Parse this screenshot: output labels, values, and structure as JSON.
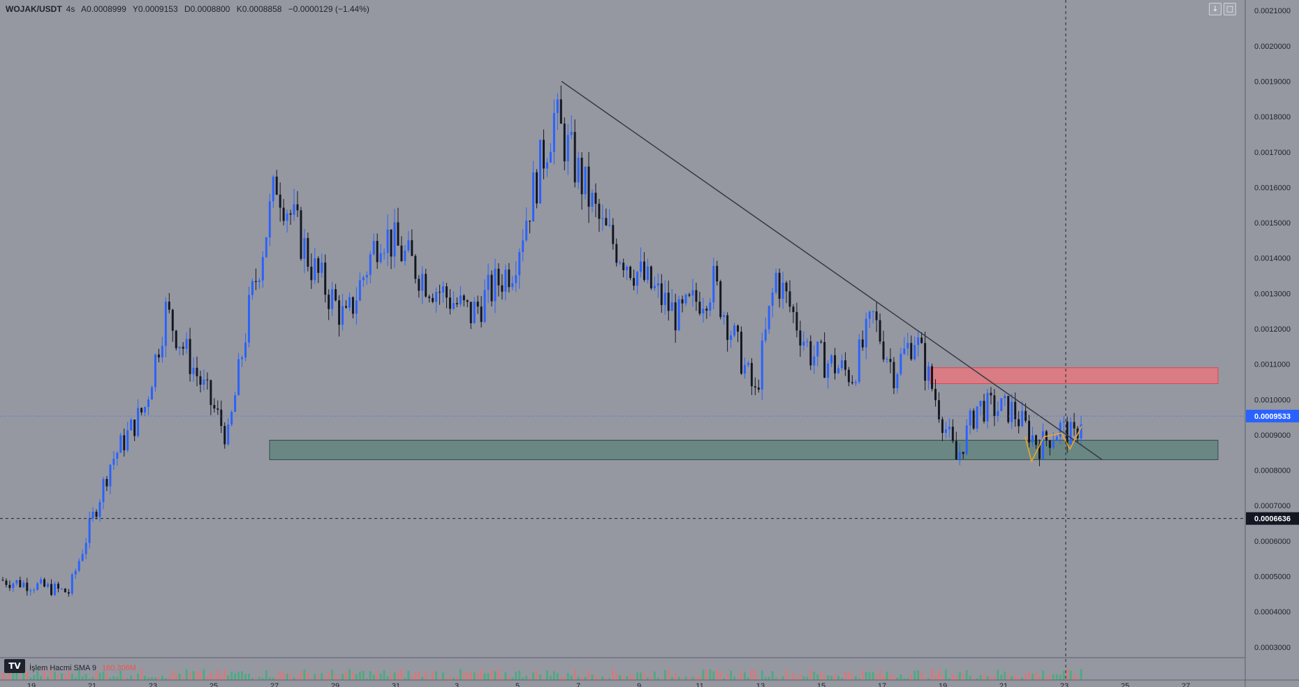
{
  "legend": {
    "symbol": "WOJAK/USDT",
    "interval": "4s",
    "open": "A0.0008999",
    "high": "Y0.0009153",
    "low": "D0.0008800",
    "close": "K0.0008858",
    "change": "−0.0000129 (−1.44%)"
  },
  "toolbar": {
    "download_icon": "download-icon",
    "fullscreen_icon": "fullscreen-icon"
  },
  "volume_legend": {
    "label": "İşlem Hacmi SMA 9",
    "value": "160.306M"
  },
  "logo": "TV",
  "colors": {
    "background": "#9598a1",
    "up_candle": "#2962ff",
    "down_candle": "#131722",
    "resistance_zone": "#f0737b",
    "support_zone": "#4f7c72",
    "trendline": "#363a45",
    "pattern": "#f5a623",
    "current_price_tag": "#2962ff",
    "crosshair_tag": "#131722"
  },
  "chart_data": {
    "type": "candlestick",
    "y_scale": {
      "min": 0.00027,
      "max": 0.00213
    },
    "y_ticks": [
      "0.0021000",
      "0.0020000",
      "0.0019000",
      "0.0018000",
      "0.0017000",
      "0.0016000",
      "0.0015000",
      "0.0014000",
      "0.0013000",
      "0.0012000",
      "0.0011000",
      "0.0010000",
      "0.0009000",
      "0.0008000",
      "0.0007000",
      "0.0006000",
      "0.0005000",
      "0.0004000",
      "0.0003000"
    ],
    "current_price": "0.0009533",
    "crosshair_price": "0.0006636",
    "x_ticks": [
      "19",
      "21",
      "23",
      "25",
      "27",
      "29",
      "31",
      "3",
      "5",
      "7",
      "9",
      "11",
      "13",
      "15",
      "17",
      "19",
      "21",
      "23",
      "25",
      "27"
    ],
    "series": [
      {
        "name": "",
        "segments": [
          {
            "bars": 10,
            "start": 0.00049,
            "end": 0.000475
          },
          {
            "bars": 10,
            "start": 0.000475,
            "end": 0.000455
          },
          {
            "bars": 12,
            "start": 0.000455,
            "end": 0.00082
          },
          {
            "bars": 10,
            "start": 0.00082,
            "end": 0.00098
          },
          {
            "bars": 6,
            "start": 0.00098,
            "end": 0.00125
          },
          {
            "bars": 10,
            "start": 0.00125,
            "end": 0.00105
          },
          {
            "bars": 8,
            "start": 0.00105,
            "end": 0.00089
          },
          {
            "bars": 6,
            "start": 0.00089,
            "end": 0.00125
          },
          {
            "bars": 8,
            "start": 0.00125,
            "end": 0.00162
          },
          {
            "bars": 10,
            "start": 0.00162,
            "end": 0.00138
          },
          {
            "bars": 10,
            "start": 0.00138,
            "end": 0.00122
          },
          {
            "bars": 10,
            "start": 0.00122,
            "end": 0.00148
          },
          {
            "bars": 14,
            "start": 0.00148,
            "end": 0.00133
          },
          {
            "bars": 12,
            "start": 0.00133,
            "end": 0.00124
          },
          {
            "bars": 12,
            "start": 0.00124,
            "end": 0.00138
          },
          {
            "bars": 12,
            "start": 0.00138,
            "end": 0.0018
          },
          {
            "bars": 14,
            "start": 0.0018,
            "end": 0.00148
          },
          {
            "bars": 10,
            "start": 0.00148,
            "end": 0.00136
          },
          {
            "bars": 12,
            "start": 0.00136,
            "end": 0.00123
          },
          {
            "bars": 10,
            "start": 0.00123,
            "end": 0.00133
          },
          {
            "bars": 12,
            "start": 0.00133,
            "end": 0.00101
          },
          {
            "bars": 6,
            "start": 0.00101,
            "end": 0.00135
          },
          {
            "bars": 10,
            "start": 0.00135,
            "end": 0.00113
          },
          {
            "bars": 12,
            "start": 0.00113,
            "end": 0.00107
          },
          {
            "bars": 6,
            "start": 0.00107,
            "end": 0.00123
          },
          {
            "bars": 6,
            "start": 0.00123,
            "end": 0.00108
          },
          {
            "bars": 6,
            "start": 0.00108,
            "end": 0.00118
          },
          {
            "bars": 12,
            "start": 0.00118,
            "end": 0.00083
          },
          {
            "bars": 6,
            "start": 0.00083,
            "end": 0.00098
          },
          {
            "bars": 10,
            "start": 0.00098,
            "end": 0.00097
          },
          {
            "bars": 8,
            "start": 0.00097,
            "end": 0.00087
          },
          {
            "bars": 6,
            "start": 0.00087,
            "end": 0.00092
          },
          {
            "bars": 4,
            "start": 0.00092,
            "end": 0.00089
          },
          {
            "bars": 2,
            "start": 0.00089,
            "end": 0.00095
          }
        ]
      }
    ],
    "resistance_zone": {
      "low": 0.001045,
      "high": 0.00109
    },
    "support_zone": {
      "low": 0.00083,
      "high": 0.000885
    },
    "trendline": {
      "from_price": 0.0019,
      "to_price": 0.00083
    }
  }
}
